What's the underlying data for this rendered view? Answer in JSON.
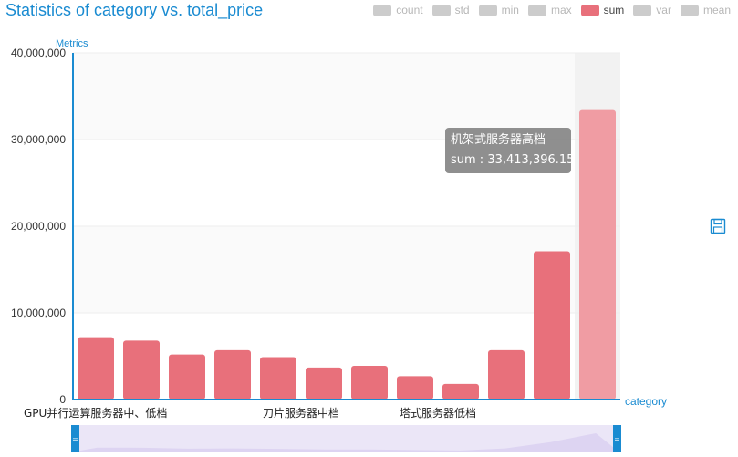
{
  "title": "Statistics of category vs. total_price",
  "legend": [
    "count",
    "std",
    "min",
    "max",
    "sum",
    "var",
    "mean"
  ],
  "legend_active": "sum",
  "tooltip": {
    "category": "机架式服务器高档",
    "line": "sum : 33,413,396.15"
  },
  "icons": {
    "save": "save-icon",
    "zoom_handle": "zoom-handle-icon"
  },
  "colors": {
    "title": "#1a8bd1",
    "bar": "#e8707b",
    "bar_highlight": "#f09ca3",
    "axis": "#1a8bd1",
    "zoom_handle": "#1a8bd1",
    "zoom_fill": "#ebe6f7"
  },
  "chart_data": {
    "type": "bar",
    "title": "Statistics of category vs. total_price",
    "ylabel": "Metrics",
    "xlabel": "category",
    "ylim": [
      0,
      40000000
    ],
    "yticks": [
      0,
      10000000,
      20000000,
      30000000,
      40000000
    ],
    "ytick_labels": [
      "0",
      "10,000,000",
      "20,000,000",
      "30,000,000",
      "40,000,000"
    ],
    "categories": [
      "GPU并行运算服务器中、低档",
      "",
      "",
      "",
      "刀片服务器中档",
      "",
      "",
      "塔式服务器低档",
      "",
      "",
      "",
      "机架式服务器高档"
    ],
    "xtick_labels": [
      "GPU并行运算服务器中、低档",
      "刀片服务器中档",
      "塔式服务器低档"
    ],
    "xtick_label_indices": [
      0,
      4,
      7
    ],
    "series": [
      {
        "name": "sum",
        "values": [
          7200000,
          6800000,
          5200000,
          5700000,
          4900000,
          3700000,
          3900000,
          2700000,
          1800000,
          5700000,
          17100000,
          33413396.15
        ]
      }
    ],
    "highlight_index": 11,
    "legend": [
      "count",
      "std",
      "min",
      "max",
      "sum",
      "var",
      "mean"
    ],
    "grid": true,
    "legend_position": "top-right"
  }
}
